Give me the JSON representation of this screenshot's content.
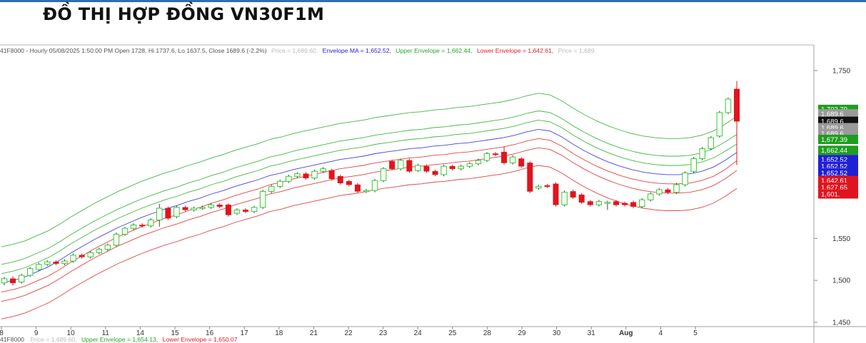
{
  "title": "ĐỒ THỊ HỢP ĐỒNG VN30F1M",
  "colors": {
    "up": "#33cc33",
    "down": "#e0141e",
    "ma": "#2222dd",
    "upper": "#22aa22",
    "lower": "#dd2222",
    "header_gray": "#555555"
  },
  "header": {
    "info": "41F8000 - Hourly 05/08/2025 1:50:00 PM Open 1728, Hi 1737.6, Lo 1637.5, Close 1689.6 (-2.2%)",
    "price": "Price = 1,689.60,",
    "ma": "Envelope MA = 1,652.52,",
    "upper": "Upper Envelope = 1,662.44,",
    "lower": "Lower Envelope = 1,642.61,",
    "price2": "Price = 1,689."
  },
  "footer": {
    "info": "41F8000",
    "price": "Price = 1,689.60,",
    "upper": "Upper Envelope = 1,654.13,",
    "lower": "Lower Envelope = 1,650.07"
  },
  "chart_data": {
    "type": "candlestick",
    "y_axis": {
      "ticks": [
        "1,750",
        "1,550",
        "1,500",
        "1,450"
      ],
      "tick_values": [
        1750,
        1550,
        1500,
        1450
      ],
      "range": [
        1450,
        1750
      ],
      "side": "right"
    },
    "x_axis": {
      "labels": [
        "8",
        "9",
        "10",
        "11",
        "14",
        "15",
        "16",
        "17",
        "18",
        "21",
        "22",
        "23",
        "24",
        "25",
        "28",
        "29",
        "30",
        "31",
        "Aug",
        "4",
        "5"
      ]
    },
    "series": [
      {
        "name": "Envelope MA",
        "values": [
          1497,
          1500,
          1504,
          1510,
          1516,
          1524,
          1533,
          1541,
          1549,
          1556,
          1563,
          1569,
          1575,
          1580,
          1585,
          1589,
          1594,
          1598,
          1603,
          1607,
          1612,
          1616,
          1620,
          1625,
          1628,
          1632,
          1635,
          1638,
          1641,
          1644,
          1646,
          1648,
          1651,
          1653,
          1655,
          1657,
          1658,
          1660,
          1661,
          1663,
          1664,
          1666,
          1668,
          1670,
          1673,
          1677,
          1680,
          1678,
          1671,
          1662,
          1654,
          1647,
          1641,
          1636,
          1632,
          1629,
          1627,
          1626,
          1626,
          1627,
          1630,
          1635,
          1643,
          1652.5
        ]
      },
      {
        "name": "Upper Envelope",
        "values": [
          1540,
          1543,
          1547,
          1553,
          1559,
          1567,
          1576,
          1584,
          1592,
          1599,
          1606,
          1612,
          1618,
          1623,
          1628,
          1632,
          1637,
          1641,
          1646,
          1650,
          1655,
          1659,
          1663,
          1668,
          1671,
          1675,
          1678,
          1681,
          1684,
          1687,
          1689,
          1691,
          1694,
          1696,
          1698,
          1700,
          1701,
          1703,
          1704,
          1706,
          1707,
          1709,
          1711,
          1713,
          1716,
          1720,
          1723,
          1721,
          1714,
          1705,
          1697,
          1690,
          1684,
          1679,
          1675,
          1672,
          1670,
          1669,
          1669,
          1670,
          1673,
          1678,
          1686,
          1695.5
        ]
      },
      {
        "name": "Lower Envelope",
        "values": [
          1454,
          1457,
          1461,
          1467,
          1473,
          1481,
          1490,
          1498,
          1506,
          1513,
          1520,
          1526,
          1532,
          1537,
          1542,
          1546,
          1551,
          1555,
          1560,
          1564,
          1569,
          1573,
          1577,
          1582,
          1585,
          1589,
          1592,
          1595,
          1598,
          1601,
          1603,
          1605,
          1608,
          1610,
          1612,
          1614,
          1615,
          1617,
          1618,
          1620,
          1621,
          1623,
          1625,
          1627,
          1630,
          1634,
          1637,
          1635,
          1628,
          1619,
          1611,
          1604,
          1598,
          1593,
          1589,
          1586,
          1584,
          1583,
          1583,
          1584,
          1587,
          1592,
          1600,
          1609.5
        ]
      },
      {
        "name": "Upper Envelope 2",
        "values": [
          1519,
          1522,
          1526,
          1532,
          1538,
          1546,
          1555,
          1563,
          1571,
          1578,
          1585,
          1591,
          1597,
          1602,
          1607,
          1611,
          1616,
          1620,
          1625,
          1629,
          1634,
          1638,
          1642,
          1647,
          1650,
          1654,
          1657,
          1660,
          1663,
          1666,
          1668,
          1670,
          1673,
          1675,
          1677,
          1679,
          1680,
          1682,
          1683,
          1685,
          1686,
          1688,
          1690,
          1692,
          1695,
          1699,
          1702,
          1700,
          1693,
          1684,
          1676,
          1669,
          1663,
          1658,
          1654,
          1651,
          1649,
          1648,
          1648,
          1649,
          1652,
          1657,
          1665,
          1674
        ]
      },
      {
        "name": "Upper Envelope 3",
        "values": [
          1508,
          1511,
          1515,
          1521,
          1527,
          1535,
          1544,
          1552,
          1560,
          1567,
          1574,
          1580,
          1586,
          1591,
          1596,
          1600,
          1605,
          1609,
          1614,
          1618,
          1623,
          1627,
          1631,
          1636,
          1639,
          1643,
          1646,
          1649,
          1652,
          1655,
          1657,
          1659,
          1662,
          1664,
          1666,
          1668,
          1669,
          1671,
          1672,
          1674,
          1675,
          1677,
          1679,
          1681,
          1684,
          1688,
          1691,
          1689,
          1682,
          1673,
          1665,
          1658,
          1652,
          1647,
          1643,
          1640,
          1638,
          1637,
          1637,
          1638,
          1641,
          1646,
          1654,
          1662.4
        ]
      },
      {
        "name": "Lower Envelope 2",
        "values": [
          1486,
          1489,
          1493,
          1499,
          1505,
          1513,
          1522,
          1530,
          1538,
          1545,
          1552,
          1558,
          1564,
          1569,
          1574,
          1578,
          1583,
          1587,
          1592,
          1596,
          1601,
          1605,
          1609,
          1614,
          1617,
          1621,
          1624,
          1627,
          1630,
          1633,
          1635,
          1637,
          1640,
          1642,
          1644,
          1646,
          1647,
          1649,
          1650,
          1652,
          1653,
          1655,
          1657,
          1659,
          1662,
          1666,
          1669,
          1667,
          1660,
          1651,
          1643,
          1636,
          1630,
          1625,
          1621,
          1618,
          1616,
          1615,
          1615,
          1616,
          1619,
          1624,
          1632,
          1642.6
        ]
      },
      {
        "name": "Lower Envelope 3",
        "values": [
          1475,
          1478,
          1482,
          1488,
          1494,
          1502,
          1511,
          1519,
          1527,
          1534,
          1541,
          1547,
          1553,
          1558,
          1563,
          1567,
          1572,
          1576,
          1581,
          1585,
          1590,
          1594,
          1598,
          1603,
          1606,
          1610,
          1613,
          1616,
          1619,
          1622,
          1624,
          1626,
          1629,
          1631,
          1633,
          1635,
          1636,
          1638,
          1639,
          1641,
          1642,
          1644,
          1646,
          1648,
          1651,
          1655,
          1658,
          1656,
          1649,
          1640,
          1632,
          1625,
          1619,
          1614,
          1610,
          1607,
          1605,
          1604,
          1604,
          1605,
          1608,
          1613,
          1621,
          1631
        ]
      }
    ],
    "candles": [
      {
        "o": 1497,
        "c": 1502,
        "h": 1504,
        "l": 1494
      },
      {
        "o": 1502,
        "c": 1497,
        "h": 1505,
        "l": 1494
      },
      {
        "o": 1498,
        "c": 1506,
        "h": 1508,
        "l": 1496
      },
      {
        "o": 1506,
        "c": 1514,
        "h": 1516,
        "l": 1504
      },
      {
        "o": 1513,
        "c": 1519,
        "h": 1521,
        "l": 1511
      },
      {
        "o": 1519,
        "c": 1522,
        "h": 1524,
        "l": 1517
      },
      {
        "o": 1522,
        "c": 1520,
        "h": 1524,
        "l": 1518
      },
      {
        "o": 1520,
        "c": 1523,
        "h": 1525,
        "l": 1518
      },
      {
        "o": 1523,
        "c": 1530,
        "h": 1532,
        "l": 1521
      },
      {
        "o": 1530,
        "c": 1528,
        "h": 1532,
        "l": 1526
      },
      {
        "o": 1528,
        "c": 1533,
        "h": 1535,
        "l": 1526
      },
      {
        "o": 1533,
        "c": 1537,
        "h": 1539,
        "l": 1531
      },
      {
        "o": 1537,
        "c": 1542,
        "h": 1544,
        "l": 1535
      },
      {
        "o": 1542,
        "c": 1555,
        "h": 1557,
        "l": 1540
      },
      {
        "o": 1555,
        "c": 1562,
        "h": 1564,
        "l": 1553
      },
      {
        "o": 1562,
        "c": 1566,
        "h": 1568,
        "l": 1560
      },
      {
        "o": 1566,
        "c": 1565,
        "h": 1568,
        "l": 1563
      },
      {
        "o": 1565,
        "c": 1572,
        "h": 1574,
        "l": 1563
      },
      {
        "o": 1572,
        "c": 1586,
        "h": 1591,
        "l": 1564
      },
      {
        "o": 1586,
        "c": 1574,
        "h": 1588,
        "l": 1572
      },
      {
        "o": 1576,
        "c": 1587,
        "h": 1589,
        "l": 1574
      },
      {
        "o": 1587,
        "c": 1584,
        "h": 1589,
        "l": 1582
      },
      {
        "o": 1584,
        "c": 1586,
        "h": 1588,
        "l": 1582
      },
      {
        "o": 1586,
        "c": 1587,
        "h": 1589,
        "l": 1584
      },
      {
        "o": 1587,
        "c": 1590,
        "h": 1592,
        "l": 1585
      },
      {
        "o": 1590,
        "c": 1588,
        "h": 1592,
        "l": 1586
      },
      {
        "o": 1590,
        "c": 1578,
        "h": 1592,
        "l": 1576
      },
      {
        "o": 1580,
        "c": 1584,
        "h": 1586,
        "l": 1578
      },
      {
        "o": 1584,
        "c": 1582,
        "h": 1586,
        "l": 1580
      },
      {
        "o": 1582,
        "c": 1587,
        "h": 1589,
        "l": 1580
      },
      {
        "o": 1587,
        "c": 1606,
        "h": 1608,
        "l": 1585
      },
      {
        "o": 1606,
        "c": 1612,
        "h": 1614,
        "l": 1604
      },
      {
        "o": 1612,
        "c": 1618,
        "h": 1620,
        "l": 1610
      },
      {
        "o": 1618,
        "c": 1624,
        "h": 1626,
        "l": 1616
      },
      {
        "o": 1624,
        "c": 1627,
        "h": 1629,
        "l": 1622
      },
      {
        "o": 1627,
        "c": 1622,
        "h": 1629,
        "l": 1620
      },
      {
        "o": 1622,
        "c": 1630,
        "h": 1632,
        "l": 1620
      },
      {
        "o": 1630,
        "c": 1633,
        "h": 1635,
        "l": 1628
      },
      {
        "o": 1631,
        "c": 1621,
        "h": 1633,
        "l": 1619
      },
      {
        "o": 1624,
        "c": 1616,
        "h": 1626,
        "l": 1614
      },
      {
        "o": 1618,
        "c": 1614,
        "h": 1620,
        "l": 1612
      },
      {
        "o": 1614,
        "c": 1606,
        "h": 1616,
        "l": 1604
      },
      {
        "o": 1606,
        "c": 1607,
        "h": 1609,
        "l": 1604
      },
      {
        "o": 1607,
        "c": 1619,
        "h": 1621,
        "l": 1605
      },
      {
        "o": 1619,
        "c": 1633,
        "h": 1635,
        "l": 1617
      },
      {
        "o": 1642,
        "c": 1633,
        "h": 1644,
        "l": 1631
      },
      {
        "o": 1633,
        "c": 1643,
        "h": 1645,
        "l": 1631
      },
      {
        "o": 1643,
        "c": 1630,
        "h": 1645,
        "l": 1628
      },
      {
        "o": 1631,
        "c": 1637,
        "h": 1639,
        "l": 1629
      },
      {
        "o": 1636,
        "c": 1630,
        "h": 1638,
        "l": 1628
      },
      {
        "o": 1630,
        "c": 1626,
        "h": 1632,
        "l": 1624
      },
      {
        "o": 1626,
        "c": 1636,
        "h": 1638,
        "l": 1624
      },
      {
        "o": 1636,
        "c": 1633,
        "h": 1638,
        "l": 1631
      },
      {
        "o": 1633,
        "c": 1636,
        "h": 1638,
        "l": 1631
      },
      {
        "o": 1636,
        "c": 1639,
        "h": 1641,
        "l": 1634
      },
      {
        "o": 1639,
        "c": 1643,
        "h": 1645,
        "l": 1637
      },
      {
        "o": 1643,
        "c": 1651,
        "h": 1653,
        "l": 1641
      },
      {
        "o": 1651,
        "c": 1650,
        "h": 1653,
        "l": 1648
      },
      {
        "o": 1653,
        "c": 1640,
        "h": 1660,
        "l": 1638
      },
      {
        "o": 1640,
        "c": 1647,
        "h": 1649,
        "l": 1638
      },
      {
        "o": 1645,
        "c": 1636,
        "h": 1647,
        "l": 1634
      },
      {
        "o": 1640,
        "c": 1606,
        "h": 1642,
        "l": 1604
      },
      {
        "o": 1610,
        "c": 1612,
        "h": 1614,
        "l": 1608
      },
      {
        "o": 1613,
        "c": 1612,
        "h": 1615,
        "l": 1610
      },
      {
        "o": 1615,
        "c": 1590,
        "h": 1617,
        "l": 1588
      },
      {
        "o": 1590,
        "c": 1605,
        "h": 1607,
        "l": 1588
      },
      {
        "o": 1606,
        "c": 1599,
        "h": 1608,
        "l": 1597
      },
      {
        "o": 1602,
        "c": 1593,
        "h": 1604,
        "l": 1591
      },
      {
        "o": 1594,
        "c": 1590,
        "h": 1596,
        "l": 1588
      },
      {
        "o": 1590,
        "c": 1594,
        "h": 1596,
        "l": 1588
      },
      {
        "o": 1593,
        "c": 1593,
        "h": 1595,
        "l": 1584
      },
      {
        "o": 1594,
        "c": 1590,
        "h": 1596,
        "l": 1588
      },
      {
        "o": 1592,
        "c": 1590,
        "h": 1594,
        "l": 1588
      },
      {
        "o": 1593,
        "c": 1588,
        "h": 1595,
        "l": 1586
      },
      {
        "o": 1588,
        "c": 1596,
        "h": 1598,
        "l": 1586
      },
      {
        "o": 1596,
        "c": 1603,
        "h": 1605,
        "l": 1594
      },
      {
        "o": 1603,
        "c": 1608,
        "h": 1610,
        "l": 1601
      },
      {
        "o": 1608,
        "c": 1605,
        "h": 1610,
        "l": 1603
      },
      {
        "o": 1605,
        "c": 1614,
        "h": 1616,
        "l": 1603
      },
      {
        "o": 1614,
        "c": 1628,
        "h": 1630,
        "l": 1612
      },
      {
        "o": 1630,
        "c": 1645,
        "h": 1647,
        "l": 1628
      },
      {
        "o": 1645,
        "c": 1657,
        "h": 1659,
        "l": 1643
      },
      {
        "o": 1657,
        "c": 1670,
        "h": 1672,
        "l": 1655
      },
      {
        "o": 1672,
        "c": 1700,
        "h": 1702,
        "l": 1670
      },
      {
        "o": 1700,
        "c": 1716,
        "h": 1718,
        "l": 1698
      },
      {
        "o": 1728,
        "c": 1689.6,
        "h": 1737.6,
        "l": 1637.5
      }
    ],
    "price_tags": [
      {
        "label": "1,703.79",
        "value": 1703.8,
        "color": "#1e9e1e"
      },
      {
        "label": "1,689.6",
        "value": 1698.5,
        "color": "#9a9a9a"
      },
      {
        "label": "1,689.6",
        "value": 1689.6,
        "color": "#111111"
      },
      {
        "label": "1,689.6",
        "value": 1682,
        "color": "#9a9a9a"
      },
      {
        "label": "1,689.6",
        "value": 1675,
        "color": "#9a9a9a"
      },
      {
        "label": "1,677.39",
        "value": 1668,
        "color": "#1e9e1e"
      },
      {
        "label": "1,662.44",
        "value": 1655,
        "color": "#1e9e1e"
      },
      {
        "label": "1,652.52",
        "value": 1644,
        "color": "#1f1fd6"
      },
      {
        "label": "1,652.52",
        "value": 1636,
        "color": "#1f1fd6"
      },
      {
        "label": "1,652.52",
        "value": 1628,
        "color": "#1f1fd6"
      },
      {
        "label": "1,642.61",
        "value": 1619,
        "color": "#e0141e"
      },
      {
        "label": "1,627.65",
        "value": 1611,
        "color": "#e0141e"
      },
      {
        "label": "1,601.",
        "value": 1603,
        "color": "#e0141e"
      }
    ]
  }
}
